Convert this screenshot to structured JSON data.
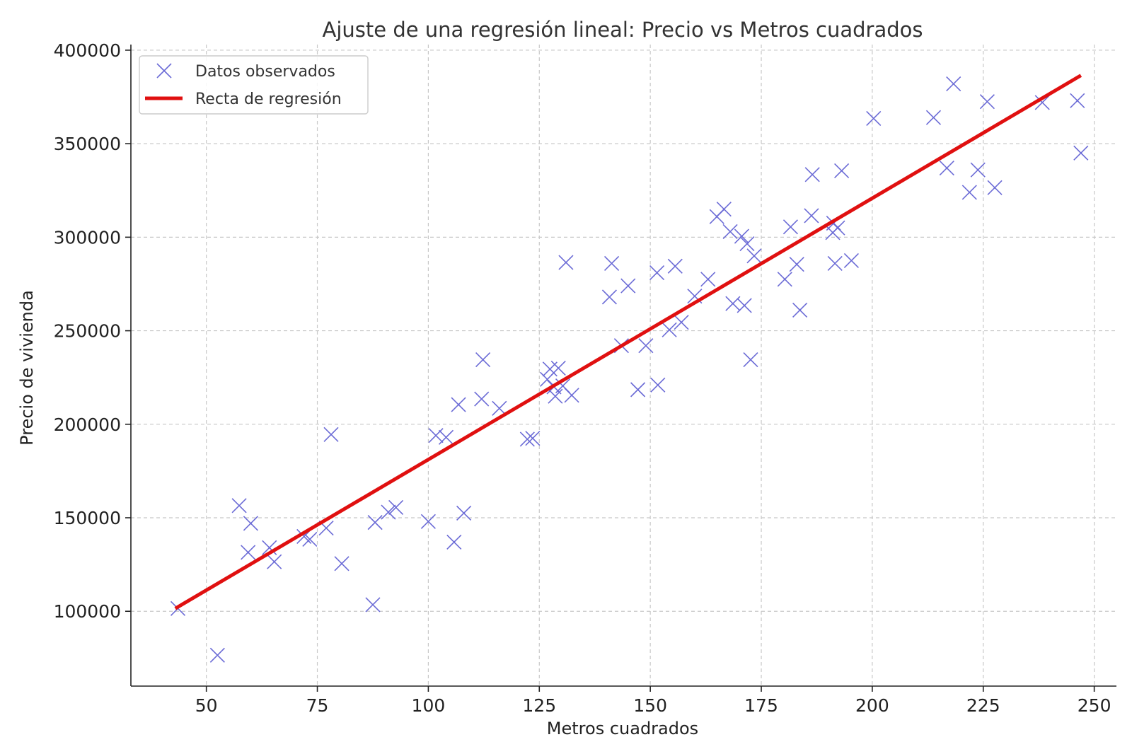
{
  "chart_data": {
    "type": "scatter",
    "title": "Ajuste de una regresión lineal: Precio vs Metros cuadrados",
    "xlabel": "Metros cuadrados",
    "ylabel": "Precio de vivienda",
    "xlim": [
      33,
      255
    ],
    "ylim": [
      60000,
      403000
    ],
    "xticks": [
      50,
      75,
      100,
      125,
      150,
      175,
      200,
      225,
      250
    ],
    "yticks": [
      100000,
      150000,
      200000,
      250000,
      300000,
      350000,
      400000
    ],
    "grid": true,
    "legend_position": "top-left",
    "colors": {
      "points": "#6b6bd6",
      "line": "#e01010"
    },
    "series": [
      {
        "name": "Datos observados",
        "kind": "scatter",
        "marker": "x",
        "points": [
          [
            43.6,
            101500
          ],
          [
            52.5,
            76500
          ],
          [
            57.4,
            156500
          ],
          [
            59.4,
            131500
          ],
          [
            60.0,
            147000
          ],
          [
            64.2,
            134000
          ],
          [
            65.3,
            126500
          ],
          [
            72.0,
            140000
          ],
          [
            73.3,
            138500
          ],
          [
            77.0,
            144500
          ],
          [
            78.1,
            194500
          ],
          [
            80.5,
            125500
          ],
          [
            87.5,
            103500
          ],
          [
            88.0,
            147500
          ],
          [
            91.0,
            153000
          ],
          [
            92.7,
            155500
          ],
          [
            100.0,
            148000
          ],
          [
            101.7,
            194000
          ],
          [
            104.0,
            193000
          ],
          [
            105.8,
            137000
          ],
          [
            106.8,
            210500
          ],
          [
            108.0,
            152500
          ],
          [
            112.0,
            213500
          ],
          [
            112.3,
            234500
          ],
          [
            116.0,
            208500
          ],
          [
            122.3,
            192000
          ],
          [
            123.5,
            192500
          ],
          [
            126.8,
            224000
          ],
          [
            127.4,
            229500
          ],
          [
            128.3,
            220000
          ],
          [
            128.6,
            215000
          ],
          [
            129.3,
            230000
          ],
          [
            130.3,
            220500
          ],
          [
            131.0,
            286500
          ],
          [
            132.3,
            215500
          ],
          [
            140.8,
            268000
          ],
          [
            141.3,
            286000
          ],
          [
            143.5,
            242000
          ],
          [
            145.0,
            274000
          ],
          [
            147.2,
            218500
          ],
          [
            149.0,
            242000
          ],
          [
            151.5,
            281000
          ],
          [
            151.7,
            221000
          ],
          [
            154.3,
            250500
          ],
          [
            155.6,
            284500
          ],
          [
            157.0,
            254500
          ],
          [
            160.0,
            268500
          ],
          [
            163.0,
            277500
          ],
          [
            165.0,
            311000
          ],
          [
            166.6,
            315000
          ],
          [
            168.0,
            303000
          ],
          [
            168.6,
            264500
          ],
          [
            170.6,
            300500
          ],
          [
            171.2,
            263500
          ],
          [
            171.8,
            296500
          ],
          [
            172.6,
            234500
          ],
          [
            173.4,
            290000
          ],
          [
            180.3,
            277500
          ],
          [
            181.6,
            305500
          ],
          [
            183.0,
            285500
          ],
          [
            183.7,
            261000
          ],
          [
            186.3,
            311500
          ],
          [
            186.5,
            333500
          ],
          [
            191.1,
            302500
          ],
          [
            191.3,
            307500
          ],
          [
            191.6,
            286000
          ],
          [
            192.2,
            305000
          ],
          [
            193.1,
            335500
          ],
          [
            195.3,
            287500
          ],
          [
            200.3,
            363500
          ],
          [
            213.8,
            364000
          ],
          [
            216.8,
            337000
          ],
          [
            218.3,
            382000
          ],
          [
            221.9,
            324000
          ],
          [
            223.8,
            336000
          ],
          [
            225.9,
            372500
          ],
          [
            227.6,
            326500
          ],
          [
            238.3,
            372000
          ],
          [
            246.2,
            373000
          ],
          [
            247.0,
            345000
          ]
        ]
      },
      {
        "name": "Recta de regresión",
        "kind": "line",
        "points": [
          [
            43,
            101500
          ],
          [
            247,
            386500
          ]
        ]
      }
    ]
  }
}
